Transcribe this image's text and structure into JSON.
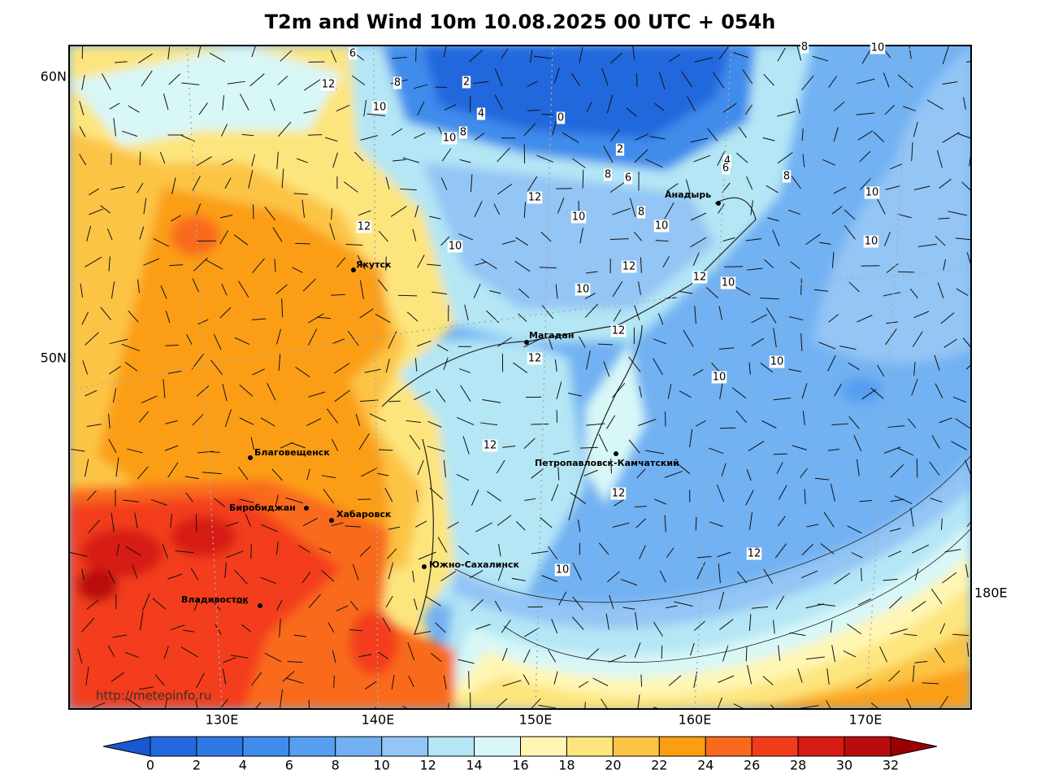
{
  "title": "T2m and Wind 10m 10.08.2025 00 UTC + 054h",
  "watermark": "http://meteoinfo.ru",
  "lat_labels": [
    "60N",
    "50N"
  ],
  "lon_labels": [
    "130E",
    "140E",
    "150E",
    "160E",
    "170E",
    "180E"
  ],
  "cities": [
    "Якутск",
    "Магадан",
    "Анадырь",
    "Благовещенск",
    "Биробиджан",
    "Хабаровск",
    "Петропавловск-Камчатский",
    "Южно-Сахалинск",
    "Владивосток"
  ],
  "contour_labels": [
    6,
    12,
    8,
    2,
    10,
    4,
    0,
    10,
    8,
    2,
    8,
    6,
    4,
    6,
    8,
    8,
    10,
    10,
    10,
    12,
    10,
    8,
    10,
    12,
    10,
    12,
    12,
    10,
    10,
    12,
    12,
    10,
    10,
    12,
    12,
    12,
    10
  ],
  "colorbar": {
    "ticks": [
      0,
      2,
      4,
      6,
      8,
      10,
      12,
      14,
      16,
      18,
      20,
      22,
      24,
      26,
      28,
      30,
      32
    ],
    "under_color": "#1a57d0",
    "colors": [
      "#2468dd",
      "#3079e5",
      "#3f8ceb",
      "#559ef0",
      "#72b1f2",
      "#93c5f5",
      "#b4e6f5",
      "#d8f7f7",
      "#fff6b4",
      "#fde57e",
      "#fcc445",
      "#fb9e12",
      "#f96a1e",
      "#f33c1b",
      "#d71a12",
      "#b80d0c"
    ],
    "over_color": "#990000"
  }
}
